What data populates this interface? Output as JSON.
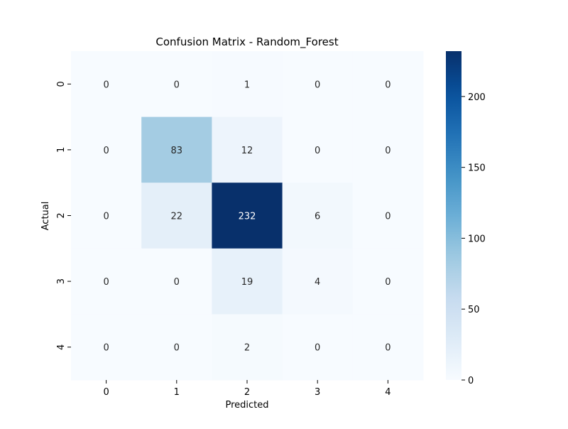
{
  "chart_data": {
    "type": "heatmap",
    "title": "Confusion Matrix - Random_Forest",
    "xlabel": "Predicted",
    "ylabel": "Actual",
    "x_categories": [
      "0",
      "1",
      "2",
      "3",
      "4"
    ],
    "y_categories": [
      "0",
      "1",
      "2",
      "3",
      "4"
    ],
    "values": [
      [
        0,
        0,
        1,
        0,
        0
      ],
      [
        0,
        83,
        12,
        0,
        0
      ],
      [
        0,
        22,
        232,
        6,
        0
      ],
      [
        0,
        0,
        19,
        4,
        0
      ],
      [
        0,
        0,
        2,
        0,
        0
      ]
    ],
    "colormap": "Blues",
    "vmin": 0,
    "vmax": 232,
    "colorbar_ticks": [
      0,
      50,
      100,
      150,
      200
    ],
    "colorbar_tick_labels": [
      "0",
      "50",
      "100",
      "150",
      "200"
    ],
    "annotated": true,
    "grid": false,
    "colorbar_position": "right"
  }
}
